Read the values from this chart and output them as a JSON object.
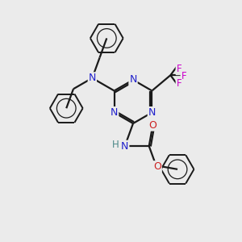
{
  "bg_color": "#ebebeb",
  "bond_color": "#1a1a1a",
  "N_color": "#2020cc",
  "O_color": "#cc2020",
  "F_color": "#cc00cc",
  "H_color": "#4a8888",
  "figsize": [
    3.0,
    3.0
  ],
  "dpi": 100,
  "xlim": [
    0,
    10
  ],
  "ylim": [
    0,
    10
  ]
}
